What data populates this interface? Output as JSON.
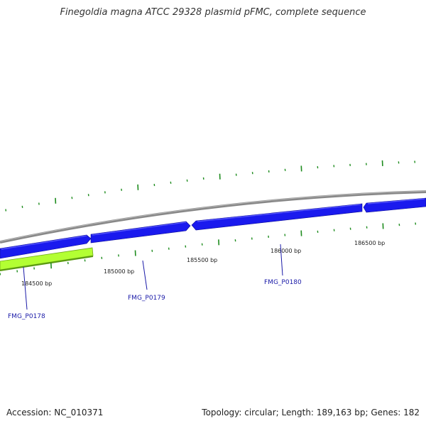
{
  "title": "Finegoldia magna ATCC 29328 plasmid pFMC, complete sequence",
  "accession": "Accession: NC_010371",
  "summary": "Topology: circular; Length: 189,163 bp; Genes: 182",
  "colors": {
    "backbone": "#888888",
    "gene_blue": "#1a1aee",
    "gene_green": "#b3ff33",
    "tick": "#1e8c1e",
    "label": "#1a1aa8"
  },
  "positions": [
    {
      "label": "184500 bp"
    },
    {
      "label": "185000 bp"
    },
    {
      "label": "185500 bp"
    },
    {
      "label": "186000 bp"
    },
    {
      "label": "186500 bp"
    }
  ],
  "genes": [
    {
      "name": "FMG_P0178",
      "color": "green",
      "strand": "reverse"
    },
    {
      "name": "FMG_P0179",
      "color": "blue",
      "strand": "forward"
    },
    {
      "name": "FMG_P0180",
      "color": "blue",
      "strand": "reverse"
    }
  ]
}
